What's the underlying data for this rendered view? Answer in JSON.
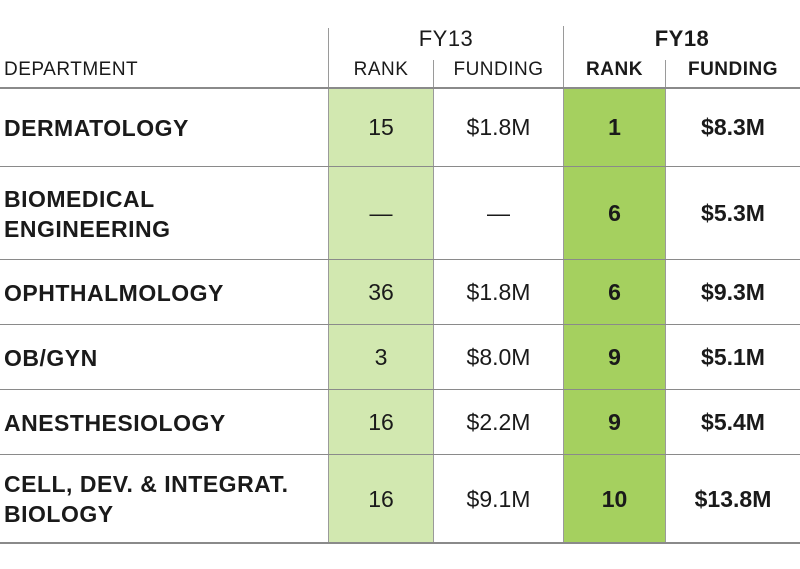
{
  "colors": {
    "fy13_rank_fill": "#d2e8b0",
    "fy18_rank_fill": "#a5d05f",
    "rule": "#8a8a8a"
  },
  "header": {
    "department": "DEPARTMENT",
    "fy13": {
      "label": "FY13",
      "rank": "RANK",
      "funding": "FUNDING"
    },
    "fy18": {
      "label": "FY18",
      "rank": "RANK",
      "funding": "FUNDING"
    }
  },
  "chart_data": {
    "type": "table",
    "columns": [
      "DEPARTMENT",
      "FY13 RANK",
      "FY13 FUNDING",
      "FY18 RANK",
      "FY18 FUNDING"
    ],
    "rows": [
      {
        "department": "DERMATOLOGY",
        "fy13_rank": "15",
        "fy13_funding": "$1.8M",
        "fy18_rank": "1",
        "fy18_funding": "$8.3M"
      },
      {
        "department": "BIOMEDICAL ENGINEERING",
        "fy13_rank": "—",
        "fy13_funding": "—",
        "fy18_rank": "6",
        "fy18_funding": "$5.3M"
      },
      {
        "department": "OPHTHALMOLOGY",
        "fy13_rank": "36",
        "fy13_funding": "$1.8M",
        "fy18_rank": "6",
        "fy18_funding": "$9.3M"
      },
      {
        "department": "OB/GYN",
        "fy13_rank": "3",
        "fy13_funding": "$8.0M",
        "fy18_rank": "9",
        "fy18_funding": "$5.1M"
      },
      {
        "department": "ANESTHESIOLOGY",
        "fy13_rank": "16",
        "fy13_funding": "$2.2M",
        "fy18_rank": "9",
        "fy18_funding": "$5.4M"
      },
      {
        "department": "CELL, DEV. & INTEGRAT. BIOLOGY",
        "fy13_rank": "16",
        "fy13_funding": "$9.1M",
        "fy18_rank": "10",
        "fy18_funding": "$13.8M"
      }
    ]
  }
}
